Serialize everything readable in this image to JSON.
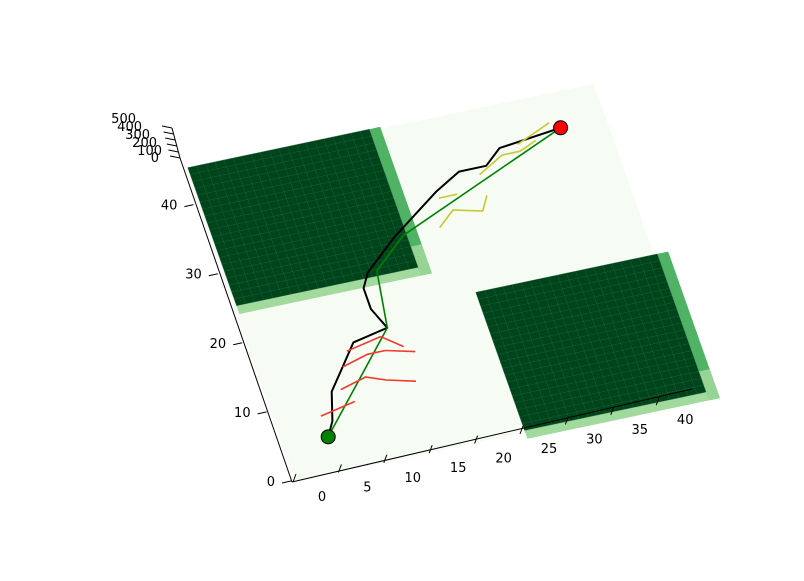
{
  "chart_data": {
    "type": "surface3d",
    "title": "",
    "xlabel": "",
    "ylabel": "",
    "zlabel": "",
    "xlim": [
      0,
      45
    ],
    "ylim": [
      0,
      45
    ],
    "zlim": [
      0,
      500
    ],
    "x_ticks": [
      "0",
      "5",
      "10",
      "15",
      "20",
      "25",
      "30",
      "35",
      "40"
    ],
    "y_ticks": [
      "0",
      "10",
      "20",
      "30",
      "40"
    ],
    "z_ticks": [
      "0",
      "100",
      "200",
      "300",
      "400",
      "500"
    ],
    "grid": false,
    "colormap": "Greens",
    "colors": {
      "floor": "#f6fcf3",
      "top": "#00441b",
      "side_light": "#a2d99c",
      "side_mid": "#4fb264",
      "start": "#008000",
      "goal": "#ff0000",
      "path_black": "#000000",
      "path_green": "#008000",
      "tree_red": "#f03a2e",
      "tree_yellow": "#c8c832"
    },
    "obstacles": [
      {
        "x": [
          0,
          20
        ],
        "y": [
          25,
          45
        ],
        "z": 500
      },
      {
        "x": [
          25,
          45
        ],
        "y": [
          0,
          20
        ],
        "z": 500
      }
    ],
    "start_point": {
      "x": 5,
      "y": 5,
      "z": 0
    },
    "goal_point": {
      "x": 40,
      "y": 40,
      "z": 0
    },
    "series": [
      {
        "kind": "planned-path",
        "color": "#000000",
        "points": [
          [
            5,
            5
          ],
          [
            6,
            7
          ],
          [
            7,
            11
          ],
          [
            9,
            14
          ],
          [
            11,
            17
          ],
          [
            15,
            18
          ],
          [
            14,
            21
          ],
          [
            14,
            24
          ],
          [
            15,
            26
          ],
          [
            19,
            30
          ],
          [
            25,
            35
          ],
          [
            28,
            37
          ],
          [
            31,
            37
          ],
          [
            33,
            39
          ],
          [
            40,
            40
          ]
        ]
      },
      {
        "kind": "direct-path",
        "color": "#008000",
        "points": [
          [
            5,
            5
          ],
          [
            15,
            18
          ],
          [
            16,
            26
          ],
          [
            20,
            30
          ],
          [
            40,
            40
          ]
        ]
      },
      {
        "kind": "search-tree-start",
        "color": "#f03a2e",
        "segments": [
          [
            [
              5,
              8
            ],
            [
              9,
              9
            ]
          ],
          [
            [
              8,
              11
            ],
            [
              11,
              12
            ],
            [
              13,
              11
            ],
            [
              16,
              10
            ]
          ],
          [
            [
              9,
              14
            ],
            [
              12,
              15
            ],
            [
              14,
              15
            ],
            [
              17,
              14
            ]
          ],
          [
            [
              10,
              16
            ],
            [
              14,
              17
            ],
            [
              16,
              15
            ]
          ]
        ]
      },
      {
        "kind": "search-tree-goal",
        "color": "#c8c832",
        "segments": [
          [
            [
              30,
              36
            ],
            [
              33,
              38
            ],
            [
              35,
              38
            ],
            [
              37,
              39
            ]
          ],
          [
            [
              35,
              39
            ],
            [
              37,
              40
            ],
            [
              39,
              41
            ]
          ],
          [
            [
              24,
              30
            ],
            [
              26,
              32
            ],
            [
              29,
              31
            ],
            [
              30,
              33
            ]
          ],
          [
            [
              25,
              34
            ],
            [
              27,
              34
            ]
          ]
        ]
      }
    ]
  }
}
